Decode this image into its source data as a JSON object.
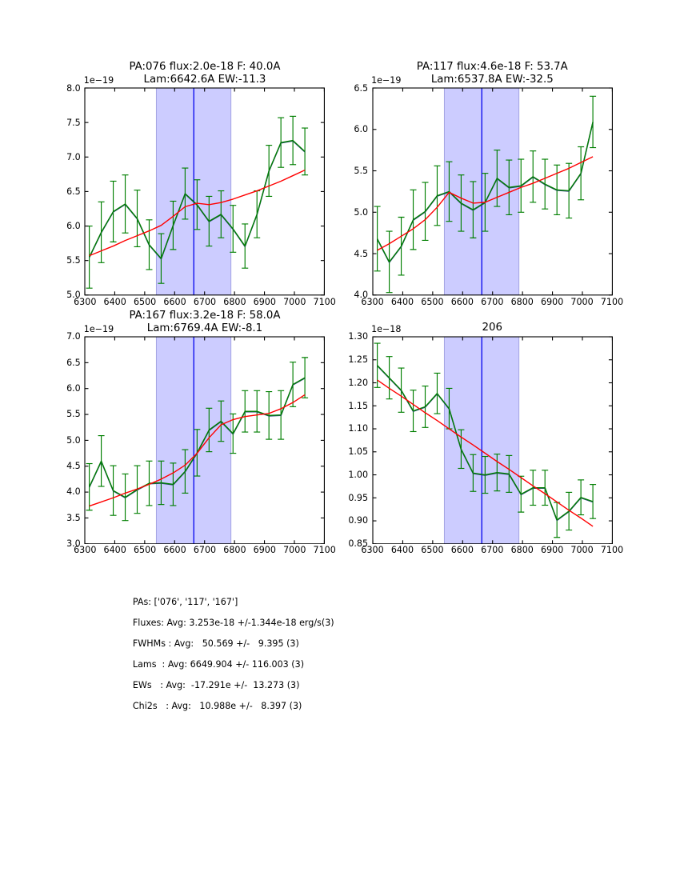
{
  "figure": {
    "background": "#ffffff"
  },
  "colors": {
    "spine": "#000000",
    "text": "#000000",
    "data_line": "#007f00",
    "data_line_shadow": "#2b4a78",
    "error_bar": "#007f00",
    "fit_line": "#ff0000",
    "band_fill": "#ccccff",
    "band_edge": "#a5a5e3",
    "center_line": "#0000ee"
  },
  "chart_data": [
    {
      "type": "line",
      "name": "PA076",
      "title_lines": [
        "PA:076 flux:2.0e-18 F: 40.0A",
        "Lam:6642.6A EW:-11.3"
      ],
      "offset_label": "1e−19",
      "xlabel": "",
      "ylabel": "",
      "xlim": [
        6300,
        7100
      ],
      "ylim": [
        5.0,
        8.0
      ],
      "xticks": [
        6300,
        6400,
        6500,
        6600,
        6700,
        6800,
        6900,
        7000,
        7100
      ],
      "xtick_labels": [
        "6300",
        "6400",
        "6500",
        "6600",
        "6700",
        "6800",
        "6900",
        "7000",
        "7100"
      ],
      "yticks": [
        5.0,
        5.5,
        6.0,
        6.5,
        7.0,
        7.5,
        8.0
      ],
      "ytick_labels": [
        "5.0",
        "5.5",
        "6.0",
        "6.5",
        "7.0",
        "7.5",
        "8.0"
      ],
      "band_x": [
        6539,
        6788
      ],
      "vline_x": 6664,
      "x": [
        6315,
        6355,
        6395,
        6435,
        6475,
        6515,
        6555,
        6595,
        6635,
        6675,
        6715,
        6755,
        6795,
        6835,
        6875,
        6915,
        6955,
        6995,
        7035
      ],
      "y": [
        5.55,
        5.91,
        6.21,
        6.32,
        6.11,
        5.73,
        5.53,
        6.01,
        6.47,
        6.31,
        6.07,
        6.17,
        5.96,
        5.71,
        6.17,
        6.8,
        7.21,
        7.24,
        7.08
      ],
      "yerr": [
        0.45,
        0.44,
        0.44,
        0.42,
        0.41,
        0.36,
        0.36,
        0.35,
        0.37,
        0.36,
        0.36,
        0.34,
        0.34,
        0.32,
        0.34,
        0.37,
        0.36,
        0.35,
        0.34
      ],
      "fit_y": [
        5.57,
        5.64,
        5.71,
        5.79,
        5.86,
        5.93,
        6.01,
        6.14,
        6.28,
        6.33,
        6.31,
        6.34,
        6.39,
        6.45,
        6.51,
        6.58,
        6.65,
        6.73,
        6.81
      ]
    },
    {
      "type": "line",
      "name": "PA117",
      "title_lines": [
        "PA:117 flux:4.6e-18 F: 53.7A",
        "Lam:6537.8A EW:-32.5"
      ],
      "offset_label": "1e−19",
      "xlabel": "",
      "ylabel": "",
      "xlim": [
        6300,
        7100
      ],
      "ylim": [
        4.0,
        6.5
      ],
      "xticks": [
        6300,
        6400,
        6500,
        6600,
        6700,
        6800,
        6900,
        7000,
        7100
      ],
      "xtick_labels": [
        "6300",
        "6400",
        "6500",
        "6600",
        "6700",
        "6800",
        "6900",
        "7000",
        "7100"
      ],
      "yticks": [
        4.0,
        4.5,
        5.0,
        5.5,
        6.0,
        6.5
      ],
      "ytick_labels": [
        "4.0",
        "4.5",
        "5.0",
        "5.5",
        "6.0",
        "6.5"
      ],
      "band_x": [
        6539,
        6788
      ],
      "vline_x": 6664,
      "x": [
        6315,
        6355,
        6395,
        6435,
        6475,
        6515,
        6555,
        6595,
        6635,
        6675,
        6715,
        6755,
        6795,
        6835,
        6875,
        6915,
        6955,
        6995,
        7035
      ],
      "y": [
        4.68,
        4.4,
        4.59,
        4.91,
        5.01,
        5.2,
        5.25,
        5.11,
        5.03,
        5.12,
        5.41,
        5.3,
        5.32,
        5.43,
        5.34,
        5.27,
        5.26,
        5.47,
        6.09
      ],
      "yerr": [
        0.39,
        0.37,
        0.35,
        0.36,
        0.35,
        0.36,
        0.36,
        0.34,
        0.34,
        0.35,
        0.34,
        0.33,
        0.32,
        0.31,
        0.3,
        0.3,
        0.33,
        0.32,
        0.31
      ],
      "fit_y": [
        4.54,
        4.62,
        4.71,
        4.8,
        4.91,
        5.06,
        5.24,
        5.17,
        5.11,
        5.12,
        5.18,
        5.24,
        5.3,
        5.35,
        5.41,
        5.47,
        5.53,
        5.6,
        5.67
      ]
    },
    {
      "type": "line",
      "name": "PA167",
      "title_lines": [
        "PA:167 flux:3.2e-18 F: 58.0A",
        "Lam:6769.4A EW:-8.1"
      ],
      "offset_label": "1e−19",
      "xlabel": "",
      "ylabel": "",
      "xlim": [
        6300,
        7100
      ],
      "ylim": [
        3.0,
        7.0
      ],
      "xticks": [
        6300,
        6400,
        6500,
        6600,
        6700,
        6800,
        6900,
        7000,
        7100
      ],
      "xtick_labels": [
        "6300",
        "6400",
        "6500",
        "6600",
        "6700",
        "6800",
        "6900",
        "7000",
        "7100"
      ],
      "yticks": [
        3.0,
        3.5,
        4.0,
        4.5,
        5.0,
        5.5,
        6.0,
        6.5,
        7.0
      ],
      "ytick_labels": [
        "3.0",
        "3.5",
        "4.0",
        "4.5",
        "5.0",
        "5.5",
        "6.0",
        "6.5",
        "7.0"
      ],
      "band_x": [
        6539,
        6788
      ],
      "vline_x": 6664,
      "x": [
        6315,
        6355,
        6395,
        6435,
        6475,
        6515,
        6555,
        6595,
        6635,
        6675,
        6715,
        6755,
        6795,
        6835,
        6875,
        6915,
        6955,
        6995,
        7035
      ],
      "y": [
        4.1,
        4.6,
        4.03,
        3.9,
        4.05,
        4.17,
        4.18,
        4.15,
        4.4,
        4.76,
        5.2,
        5.37,
        5.13,
        5.56,
        5.56,
        5.48,
        5.49,
        6.08,
        6.21
      ],
      "yerr": [
        0.45,
        0.49,
        0.48,
        0.45,
        0.46,
        0.43,
        0.42,
        0.41,
        0.42,
        0.45,
        0.42,
        0.39,
        0.38,
        0.4,
        0.4,
        0.46,
        0.47,
        0.43,
        0.39
      ],
      "fit_y": [
        3.73,
        3.81,
        3.89,
        3.98,
        4.06,
        4.15,
        4.25,
        4.37,
        4.52,
        4.75,
        5.05,
        5.3,
        5.4,
        5.46,
        5.49,
        5.52,
        5.61,
        5.73,
        5.88
      ]
    },
    {
      "type": "line",
      "name": "206",
      "title_lines": [
        "206"
      ],
      "offset_label": "1e−18",
      "xlabel": "",
      "ylabel": "",
      "xlim": [
        6300,
        7100
      ],
      "ylim": [
        0.85,
        1.3
      ],
      "xticks": [
        6300,
        6400,
        6500,
        6600,
        6700,
        6800,
        6900,
        7000,
        7100
      ],
      "xtick_labels": [
        "6300",
        "6400",
        "6500",
        "6600",
        "6700",
        "6800",
        "6900",
        "7000",
        "7100"
      ],
      "yticks": [
        0.85,
        0.9,
        0.95,
        1.0,
        1.05,
        1.1,
        1.15,
        1.2,
        1.25,
        1.3
      ],
      "ytick_labels": [
        "0.85",
        "0.90",
        "0.95",
        "1.00",
        "1.05",
        "1.10",
        "1.15",
        "1.20",
        "1.25",
        "1.30"
      ],
      "band_x": [
        6539,
        6788
      ],
      "vline_x": 6664,
      "x": [
        6315,
        6355,
        6395,
        6435,
        6475,
        6515,
        6555,
        6595,
        6635,
        6675,
        6715,
        6755,
        6795,
        6835,
        6875,
        6915,
        6955,
        6995,
        7035
      ],
      "y": [
        1.238,
        1.211,
        1.184,
        1.139,
        1.148,
        1.177,
        1.144,
        1.056,
        1.004,
        1.0,
        1.005,
        1.002,
        0.958,
        0.972,
        0.972,
        0.902,
        0.921,
        0.951,
        0.942
      ],
      "yerr": [
        0.048,
        0.046,
        0.048,
        0.045,
        0.045,
        0.044,
        0.044,
        0.042,
        0.04,
        0.04,
        0.04,
        0.04,
        0.039,
        0.038,
        0.038,
        0.038,
        0.041,
        0.038,
        0.037
      ],
      "fit_y": [
        1.206,
        1.188,
        1.171,
        1.153,
        1.135,
        1.118,
        1.1,
        1.082,
        1.065,
        1.047,
        1.029,
        1.012,
        0.994,
        0.976,
        0.959,
        0.941,
        0.923,
        0.906,
        0.888
      ]
    }
  ],
  "footer": {
    "lines": [
      "PAs: ['076', '117', '167']",
      "Fluxes: Avg: 3.253e-18 +/-1.344e-18 erg/s(3)",
      "FWHMs : Avg:   50.569 +/-   9.395 (3)",
      "Lams  : Avg: 6649.904 +/- 116.003 (3)",
      "EWs   : Avg:  -17.291e +/-  13.273 (3)",
      "Chi2s   : Avg:   10.988e +/-   8.397 (3)"
    ]
  }
}
